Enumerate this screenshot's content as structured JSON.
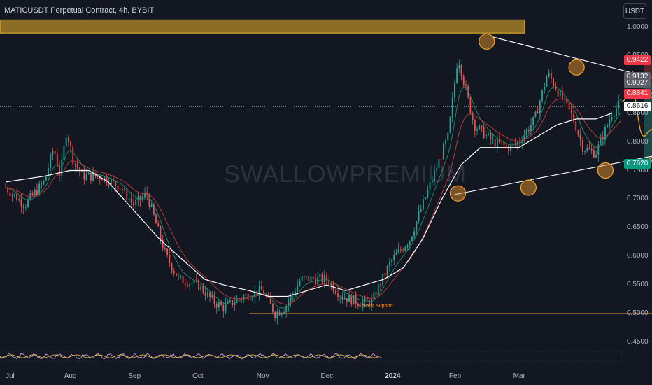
{
  "header": {
    "title": "MATICUSDT Perpetual Contract, 4h, BYBIT",
    "unit_button": "USDT"
  },
  "watermark": "SWALLOWPREMIUM",
  "colors": {
    "background": "#131722",
    "bull": "#26a69a",
    "bear": "#ef5350",
    "ema_slow": "#ffffff",
    "annotation": "#f59f2f",
    "resistance_zone": "#f0b429",
    "long_zone": "#1e5b55",
    "short_zone": "#6b2a33"
  },
  "chart_data": {
    "type": "line",
    "title": "MATICUSDT Perpetual Contract, 4h, BYBIT",
    "xlabel": "",
    "ylabel": "",
    "x": [
      "Jul",
      "Aug",
      "Sep",
      "Oct",
      "Nov",
      "Dec",
      "2024",
      "Feb",
      "Mar"
    ],
    "ylim": [
      0.43,
      1.03
    ],
    "yticks": [
      "1.0000",
      "0.9500",
      "0.9000",
      "0.8500",
      "0.8000",
      "0.7500",
      "0.7000",
      "0.6500",
      "0.6000",
      "0.5500",
      "0.5000",
      "0.4500"
    ],
    "series": [
      {
        "style": "price",
        "points": [
          [
            0.0,
            0.72
          ],
          [
            0.3,
            0.69
          ],
          [
            0.6,
            0.73
          ],
          [
            0.75,
            0.79
          ],
          [
            0.85,
            0.74
          ],
          [
            0.95,
            0.82
          ],
          [
            1.05,
            0.77
          ],
          [
            1.2,
            0.74
          ],
          [
            1.5,
            0.74
          ],
          [
            1.8,
            0.72
          ],
          [
            2.0,
            0.69
          ],
          [
            2.2,
            0.71
          ],
          [
            2.5,
            0.6
          ],
          [
            2.7,
            0.56
          ],
          [
            3.0,
            0.55
          ],
          [
            3.25,
            0.52
          ],
          [
            3.4,
            0.51
          ],
          [
            3.7,
            0.53
          ],
          [
            4.0,
            0.54
          ],
          [
            4.2,
            0.5
          ],
          [
            4.35,
            0.51
          ],
          [
            4.6,
            0.56
          ],
          [
            5.0,
            0.56
          ],
          [
            5.25,
            0.53
          ],
          [
            5.5,
            0.52
          ],
          [
            5.7,
            0.52
          ],
          [
            6.0,
            0.59
          ],
          [
            6.3,
            0.63
          ],
          [
            6.6,
            0.72
          ],
          [
            6.9,
            0.81
          ],
          [
            7.05,
            0.95
          ],
          [
            7.3,
            0.83
          ],
          [
            7.6,
            0.8
          ],
          [
            7.85,
            0.79
          ],
          [
            8.0,
            0.8
          ],
          [
            8.25,
            0.84
          ],
          [
            8.45,
            0.92
          ],
          [
            8.65,
            0.88
          ],
          [
            8.85,
            0.84
          ],
          [
            9.0,
            0.79
          ],
          [
            9.2,
            0.78
          ],
          [
            9.45,
            0.85
          ],
          [
            9.6,
            0.87
          ]
        ]
      },
      {
        "style": "ema-slow",
        "points": [
          [
            0.0,
            0.73
          ],
          [
            0.6,
            0.74
          ],
          [
            1.0,
            0.75
          ],
          [
            1.3,
            0.75
          ],
          [
            1.6,
            0.73
          ],
          [
            2.0,
            0.68
          ],
          [
            2.4,
            0.63
          ],
          [
            2.8,
            0.59
          ],
          [
            3.1,
            0.56
          ],
          [
            3.4,
            0.55
          ],
          [
            3.8,
            0.54
          ],
          [
            4.1,
            0.53
          ],
          [
            4.4,
            0.53
          ],
          [
            4.7,
            0.54
          ],
          [
            5.0,
            0.55
          ],
          [
            5.3,
            0.54
          ],
          [
            5.6,
            0.55
          ],
          [
            5.9,
            0.56
          ],
          [
            6.2,
            0.58
          ],
          [
            6.5,
            0.63
          ],
          [
            6.8,
            0.7
          ],
          [
            7.1,
            0.76
          ],
          [
            7.4,
            0.79
          ],
          [
            7.7,
            0.79
          ],
          [
            8.0,
            0.79
          ],
          [
            8.3,
            0.81
          ],
          [
            8.6,
            0.83
          ],
          [
            8.9,
            0.84
          ],
          [
            9.2,
            0.84
          ],
          [
            9.45,
            0.85
          ]
        ]
      }
    ],
    "projection": {
      "style": "projected-path",
      "points": [
        [
          9.6,
          0.87
        ],
        [
          9.75,
          0.89
        ],
        [
          9.95,
          0.81
        ],
        [
          10.05,
          0.82
        ],
        [
          10.2,
          0.87
        ],
        [
          10.45,
          0.88
        ],
        [
          10.6,
          0.9
        ],
        [
          10.8,
          0.92
        ],
        [
          11.0,
          0.94
        ],
        [
          11.2,
          1.0
        ],
        [
          11.3,
          1.04
        ]
      ],
      "cross_markers": [
        [
          9.75,
          0.918
        ],
        [
          10.05,
          0.77
        ],
        [
          10.05,
          0.881
        ]
      ]
    },
    "circled_points": [
      [
        7.5,
        0.975
      ],
      [
        8.9,
        0.93
      ],
      [
        7.05,
        0.71
      ],
      [
        8.15,
        0.72
      ],
      [
        9.35,
        0.75
      ]
    ],
    "resistance_zone": {
      "y_low": 0.99,
      "y_high": 1.013
    },
    "trendlines": [
      {
        "from": [
          7.6,
          0.983
        ],
        "to": [
          10.3,
          0.905
        ]
      },
      {
        "from": [
          7.0,
          0.708
        ],
        "to": [
          13.2,
          0.843
        ]
      }
    ],
    "support_line": {
      "label": "Lowest Support",
      "y": 0.5,
      "x_start": 3.8,
      "x_end": 16.0
    },
    "trade_boxes": [
      {
        "kind": "short",
        "x0": 9.95,
        "x1": 10.45,
        "y_low": 0.902,
        "y_high": 0.943
      },
      {
        "kind": "long",
        "x0": 9.95,
        "x1": 10.45,
        "y_low": 0.762,
        "y_high": 0.902
      },
      {
        "kind": "long",
        "x0": 10.7,
        "x1": 11.55,
        "y_low": 0.913,
        "y_high": 1.027
      },
      {
        "kind": "short",
        "x0": 10.7,
        "x1": 11.55,
        "y_low": 0.884,
        "y_high": 0.913
      }
    ],
    "current_price": 0.8616,
    "price_labels": [
      {
        "text": "0.9422",
        "value": 0.9422,
        "color": "#f23645"
      },
      {
        "text": "0.9132",
        "value": 0.9132,
        "color": "#5d606b"
      },
      {
        "text": "0.9027",
        "value": 0.9027,
        "color": "#5d606b"
      },
      {
        "text": "0.8841",
        "value": 0.8841,
        "color": "#f23645"
      },
      {
        "text": "0.8616",
        "value": 0.8616,
        "color": "#ffffff"
      },
      {
        "text": "0.7620",
        "value": 0.762,
        "color": "#089981"
      }
    ],
    "grid": false,
    "legend": "none"
  }
}
